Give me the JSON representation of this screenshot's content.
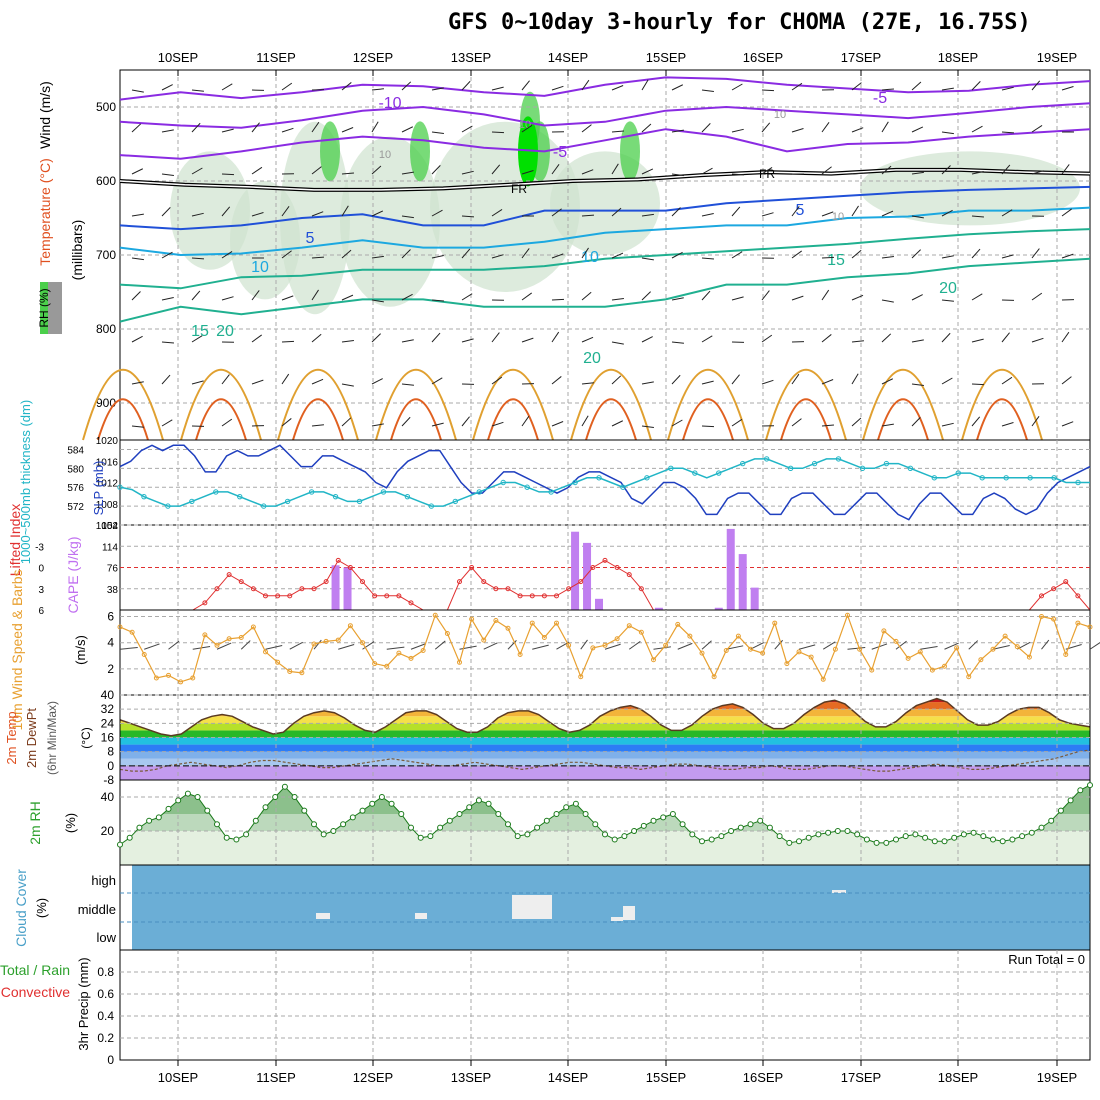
{
  "title": "GFS 0~10day 3-hourly for CHOMA (27E, 16.75S)",
  "dates": [
    "10SEP",
    "11SEP",
    "12SEP",
    "13SEP",
    "14SEP",
    "15SEP",
    "16SEP",
    "17SEP",
    "18SEP",
    "19SEP"
  ],
  "colors": {
    "grid": "#aaaaaa",
    "rh_panel_green": "#2ca02c",
    "slp": "#1f3fbf",
    "thickness": "#21b5c6",
    "lifted_index": "#e03030",
    "cape_bar": "#c07ff0",
    "wind_speed": "#e8a030",
    "cloud": "#6baed6",
    "rh_fill": "#e4f0e0"
  },
  "chart_data": [
    {
      "type": "contour",
      "name": "upper-air",
      "ylabel": "(millibars)",
      "side_labels": {
        "wind": "Wind (m/s)",
        "temperature": "Temperature (°C)",
        "rh": "RH (%)"
      },
      "yticks": [
        500,
        600,
        700,
        800,
        900
      ],
      "ylim": [
        450,
        950
      ],
      "contour_labels": {
        "temperature": [
          "-10",
          "-5",
          "-5",
          "5",
          "5",
          "10",
          "10",
          "15",
          "20",
          "15",
          "20",
          "20"
        ],
        "freezing": [
          "FR",
          "FR"
        ],
        "rh": [
          "10",
          "10",
          "10",
          "10"
        ]
      },
      "fr_level_mb": [
        600,
        605,
        608,
        612,
        612,
        610,
        605,
        600,
        598,
        592,
        588,
        590,
        585,
        585,
        588,
        590
      ]
    },
    {
      "type": "line",
      "name": "slp-thickness",
      "left_label": "1000~500mb thickness (dm)",
      "right_label": "SLP (mb)",
      "left_ticks": [
        "584",
        "580",
        "576",
        "572"
      ],
      "right_ticks": [
        "1020",
        "1016",
        "1012",
        "1008",
        "1004"
      ],
      "left_lim": [
        568,
        586
      ],
      "right_lim": [
        1004,
        1020
      ],
      "series": [
        {
          "name": "SLP (mb)",
          "axis": "right",
          "values": [
            1015,
            1016,
            1018,
            1019,
            1018,
            1019,
            1019,
            1017,
            1014,
            1014,
            1017,
            1018,
            1017,
            1017,
            1018,
            1019,
            1017,
            1015,
            1015,
            1017,
            1017,
            1016,
            1015,
            1014,
            1012,
            1011,
            1014,
            1016,
            1017,
            1018,
            1018,
            1015,
            1012,
            1010,
            1010,
            1012,
            1014,
            1014,
            1013,
            1012,
            1011,
            1010,
            1011,
            1013,
            1014,
            1014,
            1013,
            1012,
            1009,
            1008,
            1010,
            1012,
            1012,
            1011,
            1009,
            1006,
            1006,
            1009,
            1010,
            1010,
            1008,
            1006,
            1006,
            1009,
            1010,
            1010,
            1008,
            1006,
            1006,
            1008,
            1010,
            1010,
            1008,
            1006,
            1005,
            1008,
            1010,
            1010,
            1008,
            1006,
            1006,
            1009,
            1010,
            1009,
            1007,
            1006,
            1007,
            1010,
            1012,
            1013,
            1014,
            1015
          ]
        },
        {
          "name": "Thickness (dm)",
          "axis": "left",
          "values": [
            576,
            575.5,
            574,
            573,
            572,
            572,
            573,
            574,
            575,
            575,
            574,
            573,
            572,
            572,
            573,
            574,
            575,
            575,
            574,
            573,
            573,
            574,
            575,
            575,
            574,
            573,
            572,
            572,
            573,
            574,
            575,
            576,
            577,
            577,
            576,
            575,
            575,
            576,
            577,
            578,
            578,
            577,
            576,
            577,
            578,
            579,
            580,
            580,
            579,
            578,
            579,
            580,
            581,
            582,
            582,
            581,
            580,
            580,
            581,
            582,
            582,
            581,
            580,
            580,
            581,
            581,
            580,
            579,
            578,
            578,
            579,
            579,
            578,
            578,
            578,
            578,
            578,
            578,
            578,
            577,
            577,
            577
          ]
        }
      ]
    },
    {
      "type": "bar+line",
      "name": "cape-li",
      "left_label": "Lifted Index",
      "right_label": "CAPE (J/kg)",
      "li_ticks": [
        "-3",
        "0",
        "3",
        "6"
      ],
      "cape_ticks": [
        "152",
        "114",
        "76",
        "38"
      ],
      "li_lim": [
        -6,
        6
      ],
      "cape_lim": [
        0,
        152
      ],
      "lifted_index": [
        6,
        6,
        6,
        6,
        6,
        6,
        6,
        5,
        3,
        1,
        2,
        3,
        4,
        4,
        4,
        3,
        3,
        2,
        -1,
        0,
        2,
        4,
        4,
        4,
        5,
        6,
        6,
        6,
        2,
        0,
        2,
        3,
        3,
        4,
        4,
        4,
        4,
        3,
        2,
        0,
        -1,
        0,
        1,
        3,
        6,
        6,
        6,
        6,
        6,
        6,
        6,
        6,
        6,
        6,
        6,
        6,
        6,
        6,
        6,
        6,
        6,
        6,
        6,
        6,
        6,
        6,
        6,
        6,
        6,
        6,
        6,
        6,
        6,
        6,
        6,
        6,
        4,
        3,
        2,
        4,
        6
      ],
      "cape": [
        0,
        0,
        0,
        0,
        0,
        0,
        0,
        0,
        0,
        0,
        0,
        0,
        0,
        0,
        0,
        0,
        0,
        0,
        80,
        76,
        0,
        0,
        0,
        0,
        0,
        0,
        0,
        0,
        0,
        0,
        0,
        0,
        0,
        0,
        0,
        0,
        0,
        0,
        140,
        120,
        20,
        0,
        0,
        0,
        0,
        4,
        0,
        0,
        0,
        0,
        4,
        145,
        100,
        40,
        0,
        0,
        0,
        0,
        0,
        0,
        0,
        0,
        0,
        0,
        0,
        0,
        0,
        0,
        0,
        0,
        0,
        0,
        0,
        0,
        0,
        0,
        0,
        0,
        0,
        0,
        0,
        0
      ]
    },
    {
      "type": "line",
      "name": "wind-10m",
      "left_label": "10m Wind Speed & Barbs",
      "unit": "(m/s)",
      "yticks": [
        "6",
        "4",
        "2"
      ],
      "ylim": [
        0,
        6.5
      ],
      "values": [
        5.2,
        4.8,
        3.1,
        1.3,
        1.5,
        1.0,
        1.3,
        4.6,
        3.8,
        4.3,
        4.4,
        5.2,
        3.3,
        2.5,
        1.8,
        1.7,
        3.9,
        4.1,
        4.2,
        5.3,
        4.0,
        2.4,
        2.2,
        3.2,
        2.8,
        3.4,
        6.1,
        4.7,
        2.5,
        5.8,
        4.2,
        5.7,
        5.1,
        3.1,
        5.5,
        4.4,
        5.5,
        3.8,
        1.4,
        3.6,
        3.8,
        4.3,
        5.3,
        4.8,
        2.7,
        3.8,
        5.4,
        4.5,
        3.2,
        1.4,
        3.4,
        4.5,
        3.5,
        3.2,
        5.5,
        2.4,
        3.3,
        2.9,
        1.2,
        3.5,
        6.1,
        3.5,
        1.9,
        4.9,
        4.1,
        2.8,
        3.3,
        1.9,
        2.2,
        3.6,
        1.4,
        2.7,
        3.5,
        4.5,
        3.7,
        2.9,
        6.0,
        5.8,
        3.1,
        5.5,
        5.2
      ]
    },
    {
      "type": "area",
      "name": "temp-2m",
      "left_label": "2m Temp 2m DewPt (6hr Min/Max)",
      "unit": "(°C)",
      "yticks": [
        "40",
        "32",
        "24",
        "16",
        "8",
        "0",
        "-8"
      ],
      "ylim": [
        -8,
        40
      ],
      "temperature": [
        26,
        24,
        22,
        20,
        18,
        17,
        18,
        22,
        26,
        28,
        29,
        28,
        25,
        22,
        20,
        18,
        19,
        24,
        28,
        30,
        31,
        30,
        27,
        23,
        20,
        19,
        22,
        26,
        30,
        31,
        31,
        29,
        25,
        21,
        19,
        19,
        22,
        27,
        30,
        31,
        31,
        29,
        25,
        21,
        19,
        20,
        23,
        28,
        31,
        33,
        34,
        32,
        28,
        23,
        20,
        20,
        23,
        28,
        32,
        34,
        35,
        33,
        29,
        24,
        21,
        21,
        24,
        29,
        33,
        36,
        37,
        35,
        30,
        25,
        22,
        22,
        25,
        30,
        34,
        36,
        38,
        36,
        31,
        26,
        23,
        23,
        25,
        29,
        32,
        33,
        33,
        30,
        26,
        24,
        23,
        22
      ],
      "dewpoint": [
        -2,
        -3,
        -3,
        -2,
        0,
        1,
        2,
        1,
        0,
        -1,
        0,
        2,
        3,
        3,
        2,
        1,
        0,
        -1,
        -1,
        0,
        1,
        2,
        3,
        4,
        3,
        2,
        1,
        0,
        0,
        1,
        2,
        1,
        0,
        -1,
        -2,
        -1,
        0,
        1,
        2,
        2,
        1,
        0,
        -1,
        -1,
        -2,
        -1,
        0,
        1,
        1,
        0,
        -1,
        -2,
        -2,
        -1,
        -1,
        0,
        -1,
        -2,
        -2,
        -1,
        0,
        0,
        -1,
        -2,
        -3,
        -3,
        -2,
        -1,
        0,
        1,
        0,
        -1,
        -2,
        -2,
        -1,
        0,
        1,
        2,
        3,
        4,
        6,
        8,
        9
      ]
    },
    {
      "type": "area",
      "name": "rh-2m",
      "left_label": "2m RH",
      "unit": "(%)",
      "yticks": [
        "40",
        "20"
      ],
      "ylim": [
        0,
        50
      ],
      "values": [
        12,
        16,
        22,
        26,
        28,
        33,
        38,
        42,
        40,
        32,
        24,
        16,
        15,
        18,
        26,
        34,
        40,
        46,
        40,
        32,
        24,
        18,
        20,
        24,
        28,
        32,
        36,
        40,
        36,
        30,
        22,
        16,
        17,
        22,
        26,
        30,
        34,
        38,
        36,
        30,
        24,
        17,
        18,
        22,
        26,
        30,
        34,
        36,
        30,
        24,
        18,
        15,
        17,
        20,
        23,
        26,
        28,
        30,
        24,
        18,
        14,
        15,
        17,
        20,
        22,
        24,
        26,
        22,
        17,
        13,
        14,
        16,
        18,
        19,
        20,
        20,
        18,
        15,
        13,
        13,
        15,
        17,
        18,
        16,
        14,
        14,
        16,
        18,
        19,
        17,
        15,
        14,
        15,
        17,
        19,
        22,
        26,
        32,
        38,
        44,
        47
      ]
    },
    {
      "type": "bar",
      "name": "cloud-cover",
      "left_label": "Cloud Cover",
      "unit": "(%)",
      "levels": [
        "high",
        "middle",
        "low"
      ]
    },
    {
      "type": "bar",
      "name": "precip",
      "left_label": "Total / Rain Convective",
      "unit": "3hr Precip (mm)",
      "yticks": [
        "0.8",
        "0.6",
        "0.4",
        "0.2",
        "0"
      ],
      "ylim": [
        0,
        1
      ],
      "run_total": "Run Total = 0"
    }
  ]
}
